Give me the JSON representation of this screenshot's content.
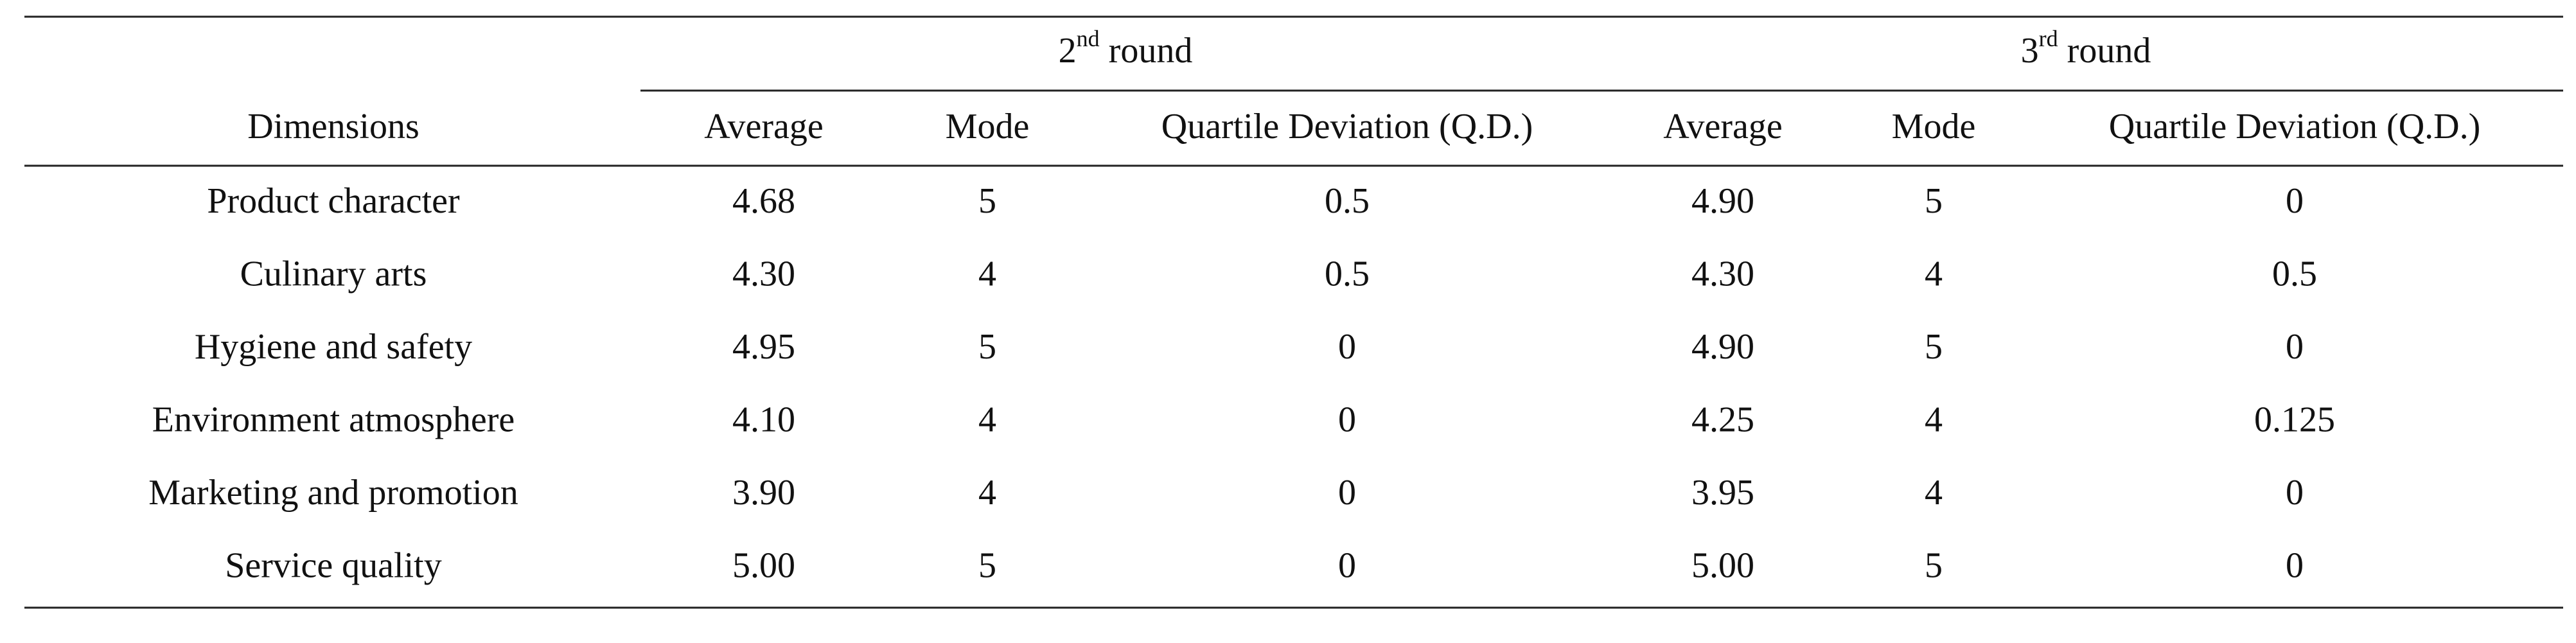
{
  "table": {
    "groups": [
      {
        "ordinal": "2",
        "suffix": "nd",
        "label": "round"
      },
      {
        "ordinal": "3",
        "suffix": "rd",
        "label": "round"
      }
    ],
    "header": [
      "Dimensions",
      "Average",
      "Mode",
      "Quartile Deviation (Q.D.)",
      "Average",
      "Mode",
      "Quartile Deviation (Q.D.)"
    ],
    "rows": [
      [
        "Product character",
        "4.68",
        "5",
        "0.5",
        "4.90",
        "5",
        "0"
      ],
      [
        "Culinary arts",
        "4.30",
        "4",
        "0.5",
        "4.30",
        "4",
        "0.5"
      ],
      [
        "Hygiene and safety",
        "4.95",
        "5",
        "0",
        "4.90",
        "5",
        "0"
      ],
      [
        "Environment atmosphere",
        "4.10",
        "4",
        "0",
        "4.25",
        "4",
        "0.125"
      ],
      [
        "Marketing and promotion",
        "3.90",
        "4",
        "0",
        "3.95",
        "4",
        "0"
      ],
      [
        "Service quality",
        "5.00",
        "5",
        "0",
        "5.00",
        "5",
        "0"
      ]
    ]
  }
}
